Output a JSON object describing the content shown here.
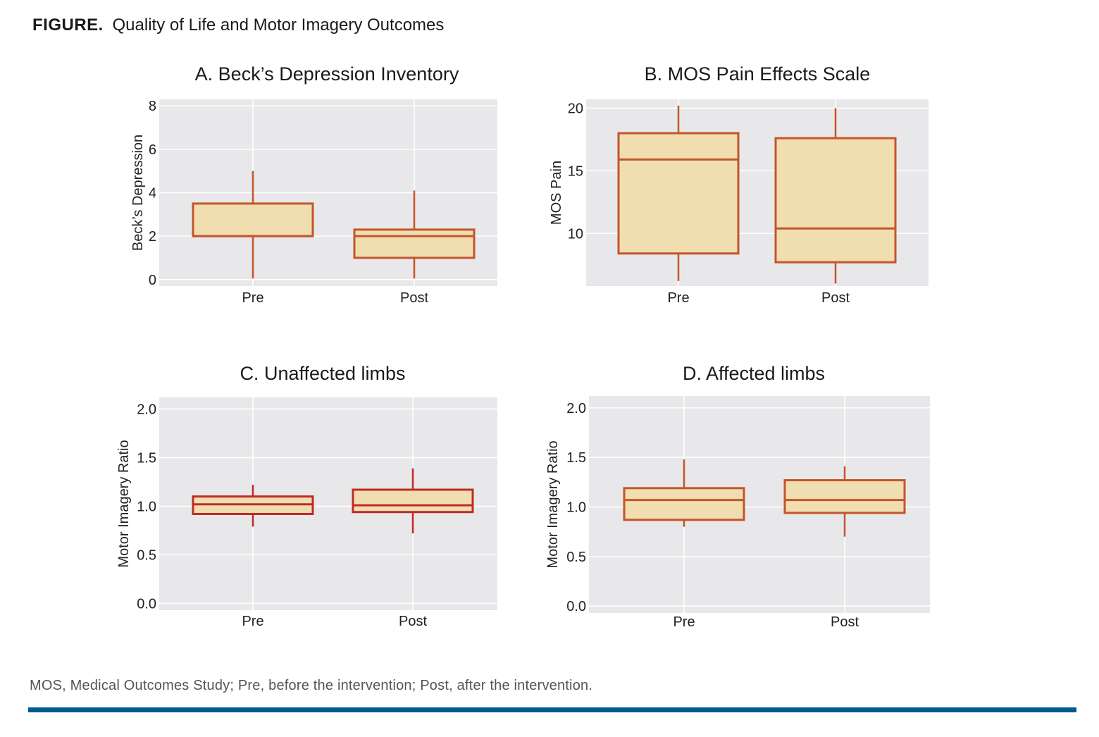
{
  "header": {
    "label": "FIGURE.",
    "title": "Quality of Life and Motor Imagery Outcomes"
  },
  "footnote": "MOS, Medical Outcomes Study; Pre, before the intervention; Post, after the intervention.",
  "colors": {
    "panel_bg": "#e8e8ea",
    "grid": "#ffffff",
    "box_fill": "#f0deb0",
    "orange_stroke": "#c4552a",
    "red_stroke": "#bf2b26",
    "rule": "#005a8c"
  },
  "chart_data": [
    {
      "type": "box",
      "title": "A. Beck’s Depression Inventory",
      "ylabel": "Beck’s Depression",
      "xlabel": "",
      "categories": [
        "Pre",
        "Post"
      ],
      "ylim": [
        -0.3,
        8.3
      ],
      "yticks": [
        0,
        2,
        4,
        6,
        8
      ],
      "ytick_labels": [
        "0",
        "2",
        "4",
        "6",
        "8"
      ],
      "grid": true,
      "stroke": "orange",
      "boxes": [
        {
          "min": 0.05,
          "q1": 2.0,
          "median": 2.0,
          "q3": 3.5,
          "max": 5.0
        },
        {
          "min": 0.05,
          "q1": 1.0,
          "median": 2.0,
          "q3": 2.3,
          "max": 4.1
        }
      ]
    },
    {
      "type": "box",
      "title": "B. MOS Pain Effects Scale",
      "ylabel": "MOS Pain",
      "xlabel": "",
      "categories": [
        "Pre",
        "Post"
      ],
      "ylim": [
        5.8,
        20.7
      ],
      "yticks": [
        10,
        15,
        20
      ],
      "ytick_labels": [
        "10",
        "15",
        "20"
      ],
      "grid": true,
      "stroke": "orange",
      "boxes": [
        {
          "min": 6.2,
          "q1": 8.4,
          "median": 15.9,
          "q3": 18.0,
          "max": 20.2
        },
        {
          "min": 6.0,
          "q1": 7.7,
          "median": 10.4,
          "q3": 17.6,
          "max": 20.0
        }
      ]
    },
    {
      "type": "box",
      "title": "C. Unaffected limbs",
      "ylabel": "Motor Imagery Ratio",
      "xlabel": "",
      "categories": [
        "Pre",
        "Post"
      ],
      "ylim": [
        -0.07,
        2.12
      ],
      "yticks": [
        0.0,
        0.5,
        1.0,
        1.5,
        2.0
      ],
      "ytick_labels": [
        "0.0",
        "0.5",
        "1.0",
        "1.5",
        "2.0"
      ],
      "grid": true,
      "stroke": "red",
      "boxes": [
        {
          "min": 0.79,
          "q1": 0.92,
          "median": 1.02,
          "q3": 1.1,
          "max": 1.22
        },
        {
          "min": 0.72,
          "q1": 0.94,
          "median": 1.01,
          "q3": 1.17,
          "max": 1.39
        }
      ]
    },
    {
      "type": "box",
      "title": "D. Affected limbs",
      "ylabel": "Motor Imagery Ratio",
      "xlabel": "",
      "categories": [
        "Pre",
        "Post"
      ],
      "ylim": [
        -0.07,
        2.12
      ],
      "yticks": [
        0.0,
        0.5,
        1.0,
        1.5,
        2.0
      ],
      "ytick_labels": [
        "0.0",
        "0.5",
        "1.0",
        "1.5",
        "2.0"
      ],
      "grid": true,
      "stroke": "orange",
      "boxes": [
        {
          "min": 0.8,
          "q1": 0.87,
          "median": 1.07,
          "q3": 1.19,
          "max": 1.48
        },
        {
          "min": 0.7,
          "q1": 0.94,
          "median": 1.07,
          "q3": 1.27,
          "max": 1.41
        }
      ]
    }
  ]
}
